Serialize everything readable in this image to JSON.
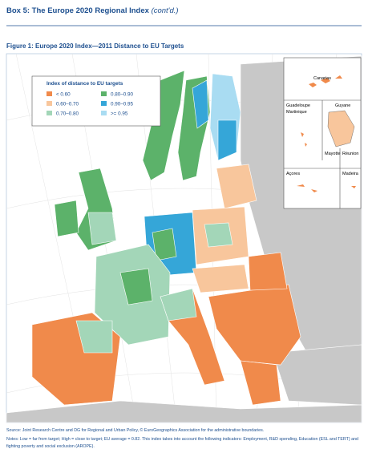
{
  "header": {
    "title": "Box 5: The Europe 2020 Regional Index",
    "title_note": "(cont'd.)"
  },
  "figure": {
    "title": "Figure 1: Europe 2020 Index—2011 Distance to EU Targets"
  },
  "legend": {
    "title": "Index of distance to EU targets",
    "items": [
      {
        "label": "< 0.60",
        "color": "#f08a4b"
      },
      {
        "label": "0.80–0.90",
        "color": "#5cb26a"
      },
      {
        "label": "0.60–0.70",
        "color": "#f8c69c"
      },
      {
        "label": "0.90–0.95",
        "color": "#35a6d8"
      },
      {
        "label": "0.70–0.80",
        "color": "#a3d6b8"
      },
      {
        "label": ">= 0.95",
        "color": "#a9dcf2"
      }
    ]
  },
  "insets": {
    "canarias": "Canarias",
    "guadeloupe": "Guadeloupe",
    "martinique": "Martinique",
    "guyane": "Guyane",
    "mayotte": "Mayotte",
    "reunion": "Réunion",
    "acores": "Açores",
    "madeira": "Madeira"
  },
  "source": "Source: Joint Research Centre and DG for Regional and Urban Policy, © EuroGeographics Association for the administrative boundaries.",
  "notes": [
    "Notes: Low = far from target; High = close to target; EU average = 0.82. This index takes into account the following indicators: Employment, R&D spending, Education (ESL and TERT) and",
    "fighting poverty and social exclusion (AROPE)."
  ]
}
